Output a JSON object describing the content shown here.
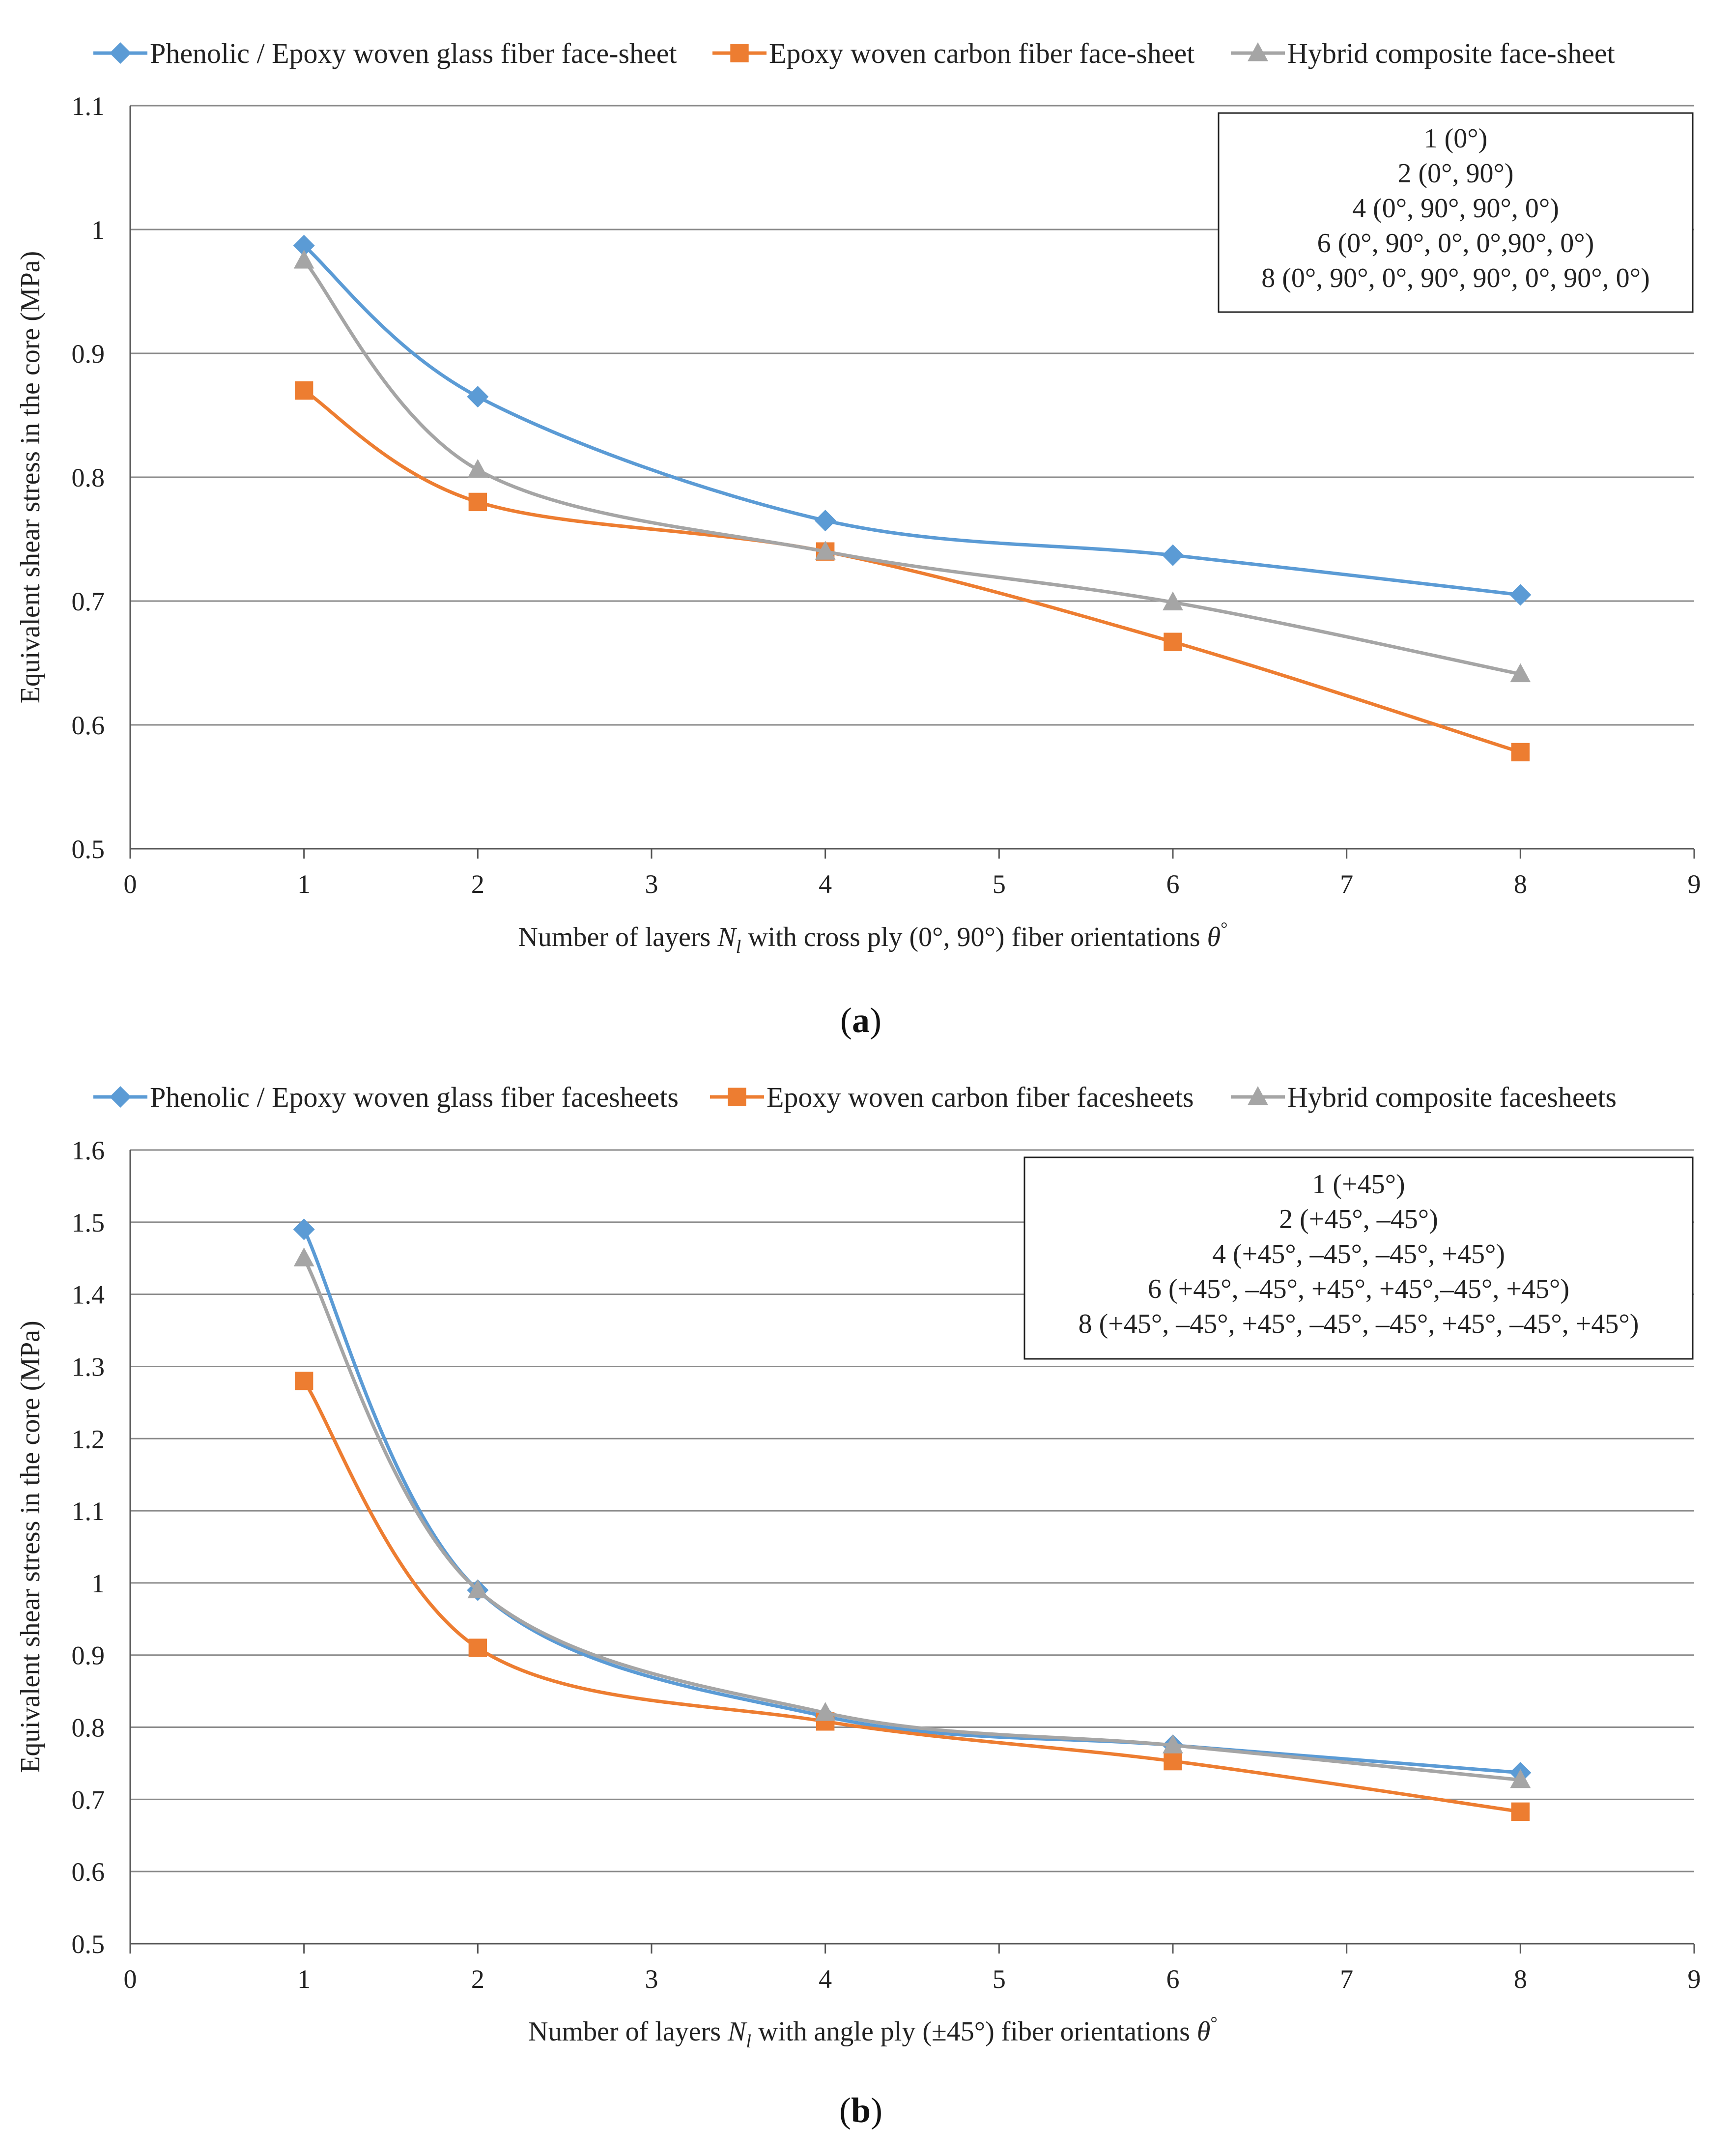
{
  "chart_data": [
    {
      "type": "line",
      "caption_letter": "a",
      "xlabel": "Number of layers N_l with cross ply (0°, 90°) fiber orientations θ°",
      "xlabel_parts": [
        "Number of layers ",
        "N",
        "l",
        " with cross ply (0°, 90°) fiber orientations ",
        "θ",
        "°"
      ],
      "ylabel": "Equivalent shear stress in the core (MPa)",
      "xlim": [
        0,
        9
      ],
      "ylim": [
        0.5,
        1.1
      ],
      "x_ticks": [
        "0",
        "1",
        "2",
        "3",
        "4",
        "5",
        "6",
        "7",
        "8",
        "9"
      ],
      "y_ticks": [
        "0.5",
        "0.6",
        "0.7",
        "0.8",
        "0.9",
        "1",
        "1.1"
      ],
      "grid": true,
      "legend_position": "top",
      "series": [
        {
          "name": "Phenolic / Epoxy woven glass fiber face-sheet",
          "color": "#5b9bd5",
          "marker": "diamond",
          "x": [
            1,
            2,
            4,
            6,
            8
          ],
          "y": [
            0.987,
            0.865,
            0.765,
            0.737,
            0.705
          ]
        },
        {
          "name": "Epoxy woven carbon fiber face-sheet",
          "color": "#ed7d31",
          "marker": "square",
          "x": [
            1,
            2,
            4,
            6,
            8
          ],
          "y": [
            0.87,
            0.78,
            0.74,
            0.667,
            0.578
          ]
        },
        {
          "name": "Hybrid composite face-sheet",
          "color": "#a5a5a5",
          "marker": "triangle",
          "x": [
            1,
            2,
            4,
            6,
            8
          ],
          "y": [
            0.975,
            0.806,
            0.74,
            0.699,
            0.641
          ]
        }
      ],
      "annotation_lines": [
        "1 (0°)",
        "2 (0°, 90°)",
        "4 (0°, 90°, 90°, 0°)",
        "6 (0°, 90°, 0°, 0°,90°, 0°)",
        "8 (0°, 90°, 0°, 90°, 90°, 0°, 90°,  0°)"
      ]
    },
    {
      "type": "line",
      "caption_letter": "b",
      "xlabel": "Number of layers N_l with angle ply (±45°) fiber orientations θ°",
      "xlabel_parts": [
        "Number of layers ",
        "N",
        "l",
        " with angle ply (±45°) fiber orientations ",
        "θ",
        "°"
      ],
      "ylabel": "Equivalent shear stress in the core (MPa)",
      "xlim": [
        0,
        9
      ],
      "ylim": [
        0.5,
        1.6
      ],
      "x_ticks": [
        "0",
        "1",
        "2",
        "3",
        "4",
        "5",
        "6",
        "7",
        "8",
        "9"
      ],
      "y_ticks": [
        "0.5",
        "0.6",
        "0.7",
        "0.8",
        "0.9",
        "1",
        "1.1",
        "1.2",
        "1.3",
        "1.4",
        "1.5",
        "1.6"
      ],
      "grid": true,
      "legend_position": "top",
      "series": [
        {
          "name": "Phenolic / Epoxy woven glass fiber facesheets",
          "color": "#5b9bd5",
          "marker": "diamond",
          "x": [
            1,
            2,
            4,
            6,
            8
          ],
          "y": [
            1.49,
            0.99,
            0.815,
            0.775,
            0.737
          ]
        },
        {
          "name": "Epoxy woven carbon  fiber facesheets",
          "color": "#ed7d31",
          "marker": "square",
          "x": [
            1,
            2,
            4,
            6,
            8
          ],
          "y": [
            1.28,
            0.91,
            0.808,
            0.753,
            0.683
          ]
        },
        {
          "name": "Hybrid composite facesheets",
          "color": "#a5a5a5",
          "marker": "triangle",
          "x": [
            1,
            2,
            4,
            6,
            8
          ],
          "y": [
            1.45,
            0.99,
            0.82,
            0.775,
            0.727
          ]
        }
      ],
      "annotation_lines": [
        "1 (+45°)",
        "2 (+45°, –45°)",
        "4 (+45°, –45°, –45°, +45°)",
        "6 (+45°, –45°, +45°, +45°,–45°, +45°)",
        "8 (+45°, –45°, +45°, –45°, –45°, +45°, –45°,  +45°)"
      ]
    }
  ]
}
